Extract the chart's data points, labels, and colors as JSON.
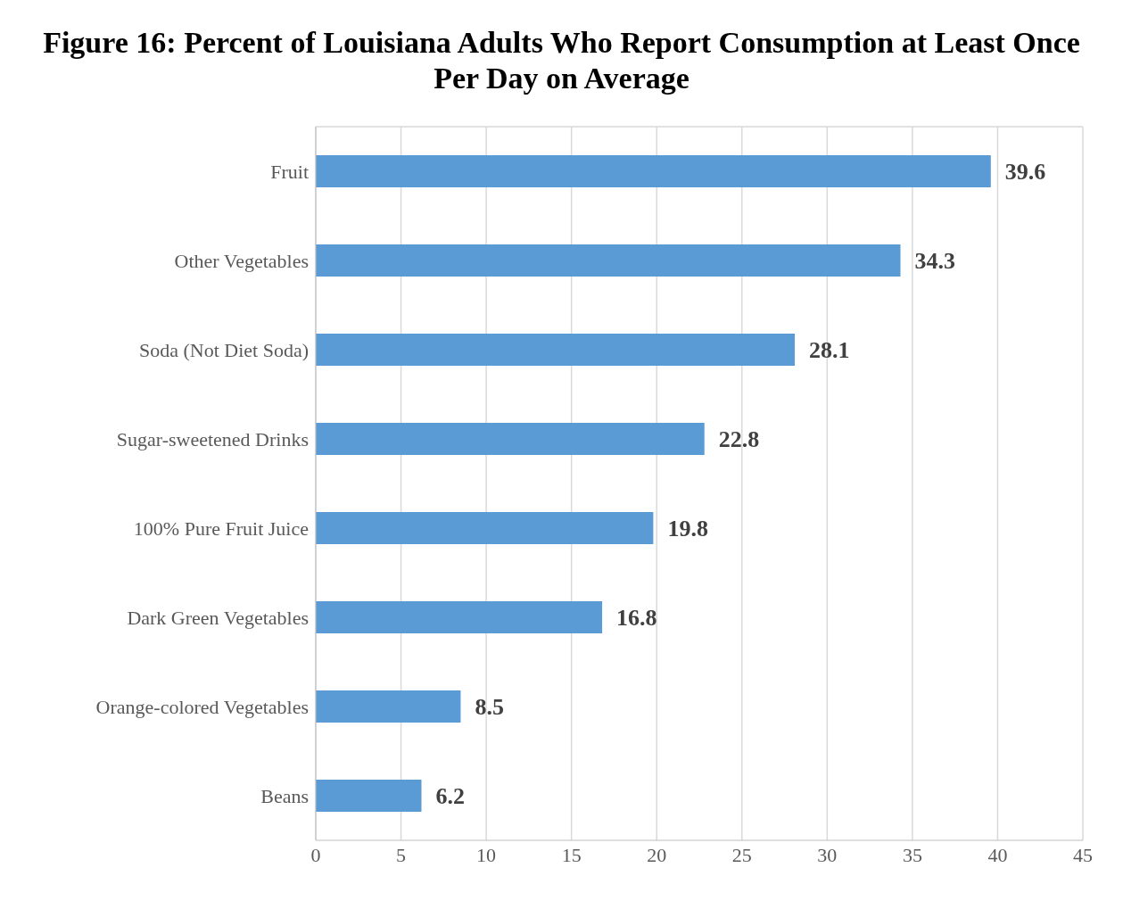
{
  "chart_data": {
    "type": "bar",
    "orientation": "horizontal",
    "title": "Figure 16: Percent of Louisiana Adults Who Report Consumption at Least Once Per Day on Average",
    "categories": [
      "Fruit",
      "Other Vegetables",
      "Soda (Not Diet Soda)",
      "Sugar-sweetened Drinks",
      "100% Pure Fruit Juice",
      "Dark Green Vegetables",
      "Orange-colored Vegetables",
      "Beans"
    ],
    "values": [
      39.6,
      34.3,
      28.1,
      22.8,
      19.8,
      16.8,
      8.5,
      6.2
    ],
    "color": "#5b9bd5",
    "xlim": [
      0,
      45
    ],
    "xticks": [
      0,
      5,
      10,
      15,
      20,
      25,
      30,
      35,
      40,
      45
    ],
    "grid": "x",
    "data_labels": true,
    "legend": false
  }
}
